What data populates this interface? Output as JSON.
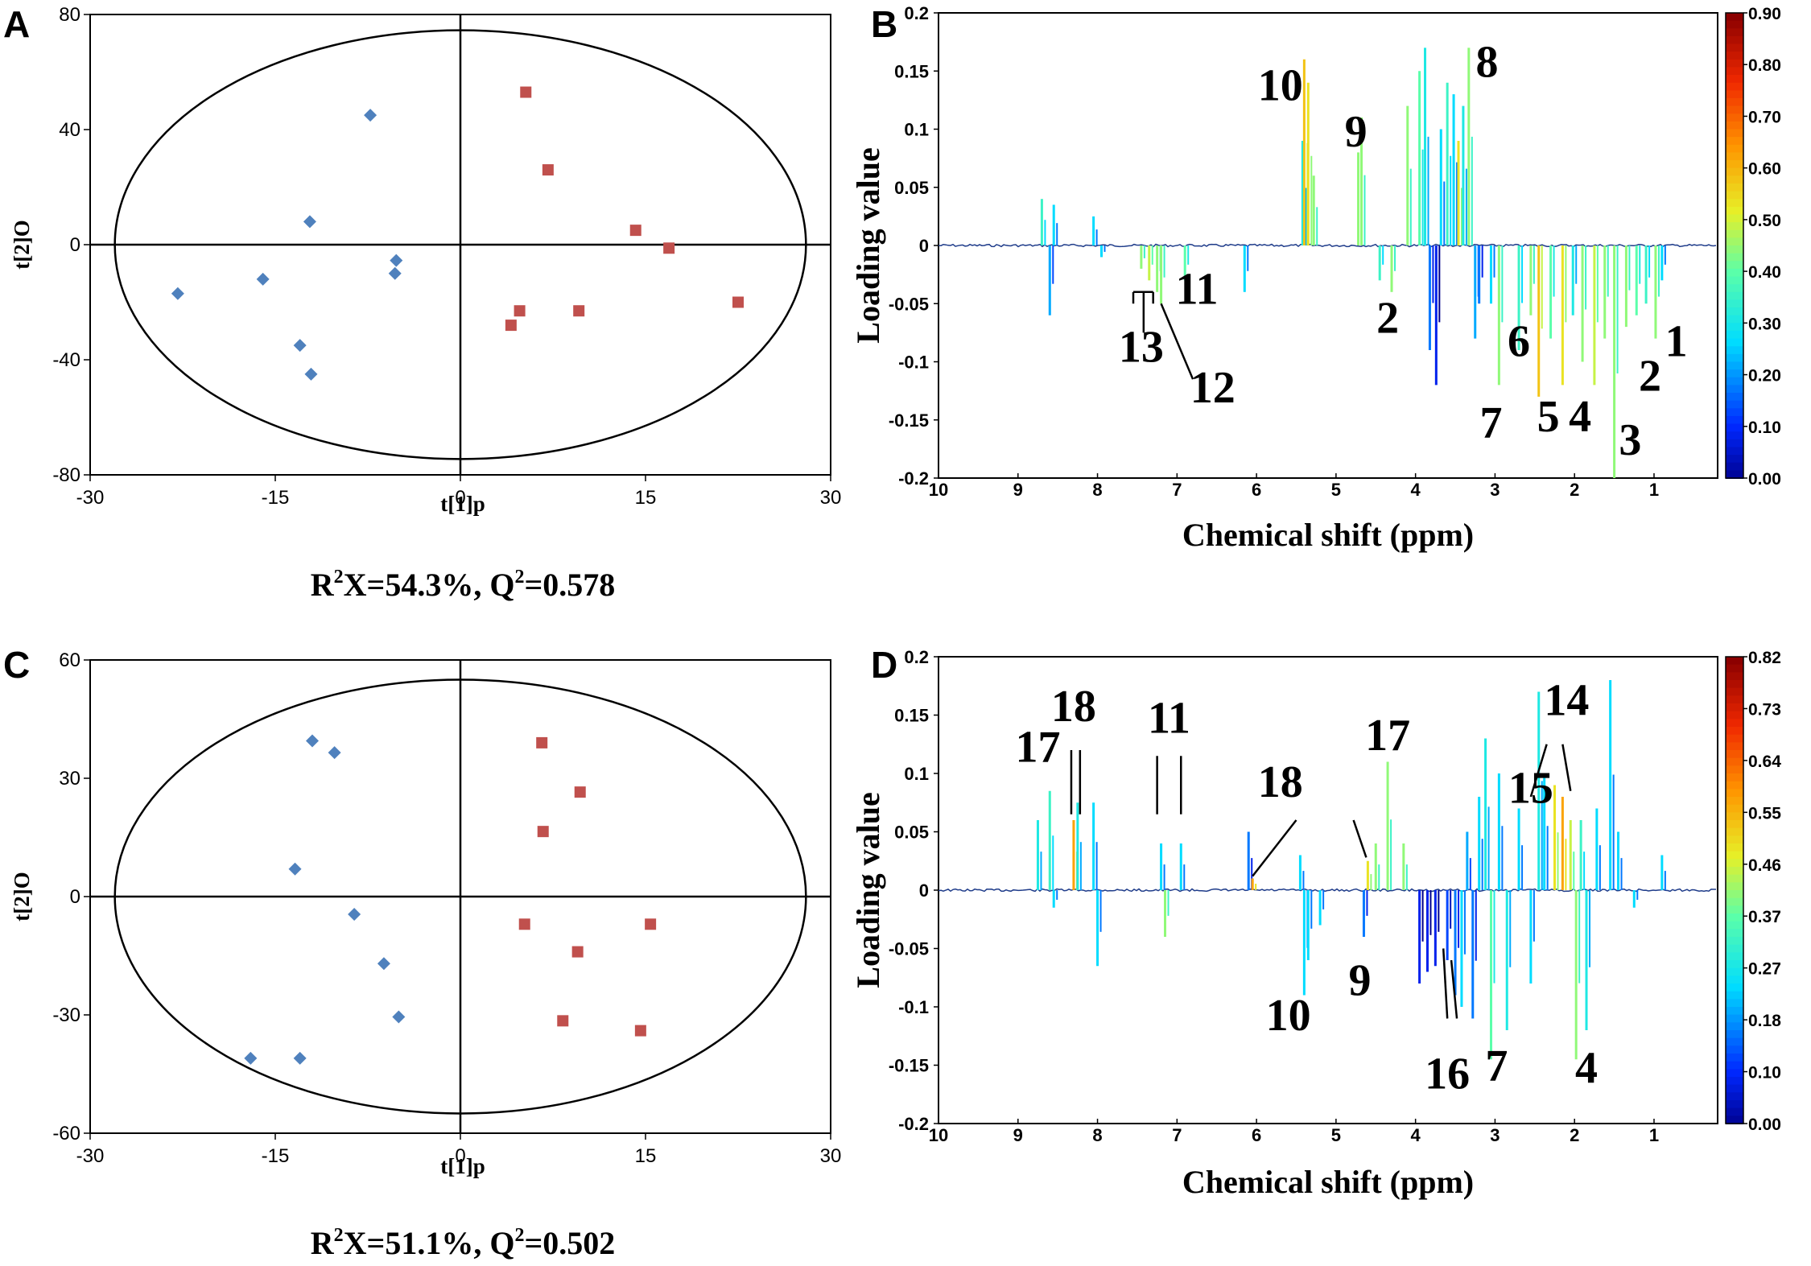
{
  "colors": {
    "diamond": "#4f81bd",
    "square": "#c0504d",
    "axis": "#000000",
    "spectrum_base": "#1f3c8a"
  },
  "chart_data": [
    {
      "panel": "A",
      "type": "scatter",
      "xlabel": "t[1]p",
      "ylabel": "t[2]O",
      "xlim": [
        -30,
        30
      ],
      "ylim": [
        -80,
        80
      ],
      "xticks": [
        "-30",
        "-15",
        "0",
        "15",
        "30"
      ],
      "yticks": [
        "80",
        "40",
        "0",
        "-40",
        "-80"
      ],
      "xtick_values": [
        -30,
        -15,
        0,
        15,
        30
      ],
      "ytick_values": [
        80,
        40,
        0,
        -40,
        -80
      ],
      "ellipse": {
        "rx": 28.0,
        "ry": 74.5
      },
      "stats": {
        "r2x_sym": "R",
        "r2x_sup": "2",
        "r2x_rest": "X=54.3%, Q",
        "q2_sup": "2",
        "q2_rest": "=0.578"
      },
      "series": [
        {
          "name": "group-blue",
          "marker": "diamond",
          "points": [
            [
              -7.3,
              45
            ],
            [
              -12.2,
              8
            ],
            [
              -5.2,
              -5.5
            ],
            [
              -5.3,
              -10
            ],
            [
              -16.0,
              -12
            ],
            [
              -22.9,
              -17
            ],
            [
              -13.0,
              -35
            ],
            [
              -12.1,
              -45
            ]
          ]
        },
        {
          "name": "group-red",
          "marker": "square",
          "points": [
            [
              5.3,
              53
            ],
            [
              7.1,
              26
            ],
            [
              14.2,
              5
            ],
            [
              16.9,
              -1.2
            ],
            [
              22.5,
              -20
            ],
            [
              9.6,
              -23
            ],
            [
              4.8,
              -23
            ],
            [
              4.1,
              -28
            ]
          ]
        }
      ]
    },
    {
      "panel": "C",
      "type": "scatter",
      "xlabel": "t[1]p",
      "ylabel": "t[2]O",
      "xlim": [
        -30,
        30
      ],
      "ylim": [
        -60,
        60
      ],
      "xticks": [
        "-30",
        "-15",
        "0",
        "15",
        "30"
      ],
      "yticks": [
        "60",
        "30",
        "0",
        "-30",
        "-60"
      ],
      "xtick_values": [
        -30,
        -15,
        0,
        15,
        30
      ],
      "ytick_values": [
        60,
        30,
        0,
        -30,
        -60
      ],
      "ellipse": {
        "rx": 28.0,
        "ry": 55.0
      },
      "stats": {
        "r2x_sym": "R",
        "r2x_sup": "2",
        "r2x_rest": "X=51.1%, Q",
        "q2_sup": "2",
        "q2_rest": "=0.502"
      },
      "series": [
        {
          "name": "group-blue",
          "marker": "diamond",
          "points": [
            [
              -12.0,
              39.5
            ],
            [
              -10.2,
              36.5
            ],
            [
              -13.4,
              7
            ],
            [
              -8.6,
              -4.5
            ],
            [
              -6.2,
              -17
            ],
            [
              -5.0,
              -30.5
            ],
            [
              -17.0,
              -41
            ],
            [
              -13.0,
              -41
            ]
          ]
        },
        {
          "name": "group-red",
          "marker": "square",
          "points": [
            [
              6.6,
              39
            ],
            [
              9.7,
              26.5
            ],
            [
              6.7,
              16.5
            ],
            [
              5.2,
              -7
            ],
            [
              15.4,
              -7
            ],
            [
              9.5,
              -14
            ],
            [
              8.3,
              -31.5
            ],
            [
              14.6,
              -34
            ]
          ]
        }
      ]
    },
    {
      "panel": "B",
      "type": "line",
      "xlabel": "Chemical shift (ppm)",
      "ylabel": "Loading value",
      "xlim": [
        10,
        0.2
      ],
      "ylim": [
        -0.2,
        0.2
      ],
      "xticks": [
        "10",
        "9",
        "8",
        "7",
        "6",
        "5",
        "4",
        "3",
        "2",
        "1"
      ],
      "xtick_values": [
        10,
        9,
        8,
        7,
        6,
        5,
        4,
        3,
        2,
        1
      ],
      "yticks": [
        "0.2",
        "0.15",
        "0.1",
        "0.05",
        "0",
        "-0.05",
        "-0.1",
        "-0.15",
        "-0.2"
      ],
      "ytick_values": [
        0.2,
        0.15,
        0.1,
        0.05,
        0,
        -0.05,
        -0.1,
        -0.15,
        -0.2
      ],
      "colorbar": [
        "0.90",
        "0.80",
        "0.70",
        "0.60",
        "0.50",
        "0.40",
        "0.30",
        "0.20",
        "0.10",
        "0.00"
      ],
      "peaks": [
        [
          8.7,
          0.04,
          0.4
        ],
        [
          8.6,
          -0.06,
          0.25
        ],
        [
          8.55,
          0.035,
          0.3
        ],
        [
          8.05,
          0.025,
          0.3
        ],
        [
          7.95,
          -0.01,
          0.3
        ],
        [
          7.45,
          -0.02,
          0.5
        ],
        [
          7.35,
          -0.03,
          0.55
        ],
        [
          7.25,
          -0.04,
          0.5
        ],
        [
          7.2,
          -0.05,
          0.5
        ],
        [
          6.9,
          -0.03,
          0.45
        ],
        [
          6.15,
          -0.04,
          0.3
        ],
        [
          5.42,
          0.09,
          0.35
        ],
        [
          5.4,
          0.16,
          0.65
        ],
        [
          5.35,
          0.14,
          0.6
        ],
        [
          5.28,
          0.06,
          0.5
        ],
        [
          4.72,
          0.08,
          0.5
        ],
        [
          4.68,
          0.11,
          0.5
        ],
        [
          4.45,
          -0.03,
          0.4
        ],
        [
          4.3,
          -0.04,
          0.5
        ],
        [
          4.1,
          0.12,
          0.5
        ],
        [
          3.95,
          0.15,
          0.45
        ],
        [
          3.88,
          0.17,
          0.35
        ],
        [
          3.82,
          -0.09,
          0.2
        ],
        [
          3.74,
          -0.12,
          0.1
        ],
        [
          3.68,
          0.1,
          0.3
        ],
        [
          3.6,
          0.14,
          0.4
        ],
        [
          3.52,
          0.13,
          0.3
        ],
        [
          3.46,
          0.09,
          0.6
        ],
        [
          3.4,
          0.12,
          0.35
        ],
        [
          3.33,
          0.17,
          0.5
        ],
        [
          3.25,
          -0.08,
          0.25
        ],
        [
          3.2,
          -0.05,
          0.2
        ],
        [
          3.05,
          -0.05,
          0.3
        ],
        [
          2.95,
          -0.12,
          0.5
        ],
        [
          2.7,
          -0.09,
          0.4
        ],
        [
          2.55,
          -0.06,
          0.5
        ],
        [
          2.45,
          -0.13,
          0.65
        ],
        [
          2.3,
          -0.08,
          0.45
        ],
        [
          2.15,
          -0.12,
          0.6
        ],
        [
          2.02,
          -0.06,
          0.35
        ],
        [
          1.9,
          -0.1,
          0.5
        ],
        [
          1.75,
          -0.12,
          0.55
        ],
        [
          1.62,
          -0.08,
          0.5
        ],
        [
          1.5,
          -0.2,
          0.5
        ],
        [
          1.35,
          -0.07,
          0.5
        ],
        [
          1.22,
          -0.06,
          0.45
        ],
        [
          1.1,
          -0.05,
          0.4
        ],
        [
          0.98,
          -0.08,
          0.5
        ],
        [
          0.9,
          -0.03,
          0.3
        ]
      ],
      "annotations": [
        {
          "text": "10",
          "x": 5.7,
          "y": 0.125
        },
        {
          "text": "9",
          "x": 4.75,
          "y": 0.085
        },
        {
          "text": "8",
          "x": 3.1,
          "y": 0.145
        },
        {
          "text": "11",
          "x": 6.75,
          "y": -0.05
        },
        {
          "text": "13",
          "x": 7.45,
          "y": -0.1
        },
        {
          "text": "12",
          "x": 6.55,
          "y": -0.135
        },
        {
          "text": "2",
          "x": 4.35,
          "y": -0.075
        },
        {
          "text": "6",
          "x": 2.7,
          "y": -0.095
        },
        {
          "text": "1",
          "x": 0.72,
          "y": -0.095
        },
        {
          "text": "2",
          "x": 1.05,
          "y": -0.125
        },
        {
          "text": "7",
          "x": 3.05,
          "y": -0.165
        },
        {
          "text": "5",
          "x": 2.33,
          "y": -0.16
        },
        {
          "text": "4",
          "x": 1.93,
          "y": -0.16
        },
        {
          "text": "3",
          "x": 1.3,
          "y": -0.18
        }
      ]
    },
    {
      "panel": "D",
      "type": "line",
      "xlabel": "Chemical shift (ppm)",
      "ylabel": "Loading value",
      "xlim": [
        10,
        0.2
      ],
      "ylim": [
        -0.2,
        0.2
      ],
      "xticks": [
        "10",
        "9",
        "8",
        "7",
        "6",
        "5",
        "4",
        "3",
        "2",
        "1"
      ],
      "xtick_values": [
        10,
        9,
        8,
        7,
        6,
        5,
        4,
        3,
        2,
        1
      ],
      "yticks": [
        "0.2",
        "0.15",
        "0.1",
        "0.05",
        "0",
        "-0.05",
        "-0.1",
        "-0.15",
        "-0.2"
      ],
      "ytick_values": [
        0.2,
        0.15,
        0.1,
        0.05,
        0,
        -0.05,
        -0.1,
        -0.15,
        -0.2
      ],
      "colorbar": [
        "0.82",
        "0.73",
        "0.64",
        "0.55",
        "0.46",
        "0.37",
        "0.27",
        "0.18",
        "0.10",
        "0.00"
      ],
      "peaks": [
        [
          8.75,
          0.06,
          0.35
        ],
        [
          8.6,
          0.085,
          0.4
        ],
        [
          8.55,
          -0.015,
          0.3
        ],
        [
          8.3,
          0.06,
          0.7
        ],
        [
          8.25,
          0.075,
          0.35
        ],
        [
          8.05,
          0.075,
          0.3
        ],
        [
          8.0,
          -0.065,
          0.3
        ],
        [
          7.2,
          0.04,
          0.3
        ],
        [
          7.15,
          -0.04,
          0.5
        ],
        [
          6.95,
          0.04,
          0.3
        ],
        [
          6.1,
          0.05,
          0.2
        ],
        [
          6.05,
          0.01,
          0.7
        ],
        [
          5.45,
          0.03,
          0.3
        ],
        [
          5.4,
          -0.09,
          0.3
        ],
        [
          5.35,
          -0.06,
          0.3
        ],
        [
          5.2,
          -0.03,
          0.3
        ],
        [
          4.65,
          -0.04,
          0.2
        ],
        [
          4.6,
          0.025,
          0.6
        ],
        [
          4.5,
          0.04,
          0.5
        ],
        [
          4.35,
          0.11,
          0.5
        ],
        [
          4.15,
          0.04,
          0.5
        ],
        [
          3.95,
          -0.08,
          0.1
        ],
        [
          3.85,
          -0.07,
          0.1
        ],
        [
          3.75,
          -0.065,
          0.1
        ],
        [
          3.6,
          -0.06,
          0.15
        ],
        [
          3.5,
          -0.09,
          0.2
        ],
        [
          3.42,
          -0.1,
          0.3
        ],
        [
          3.35,
          0.05,
          0.25
        ],
        [
          3.28,
          -0.11,
          0.2
        ],
        [
          3.2,
          0.08,
          0.3
        ],
        [
          3.12,
          0.13,
          0.35
        ],
        [
          3.05,
          -0.145,
          0.45
        ],
        [
          2.95,
          0.1,
          0.3
        ],
        [
          2.85,
          -0.12,
          0.35
        ],
        [
          2.7,
          0.07,
          0.3
        ],
        [
          2.55,
          -0.08,
          0.3
        ],
        [
          2.45,
          0.17,
          0.35
        ],
        [
          2.38,
          0.1,
          0.3
        ],
        [
          2.25,
          0.09,
          0.6
        ],
        [
          2.15,
          0.08,
          0.7
        ],
        [
          2.05,
          0.06,
          0.55
        ],
        [
          1.98,
          -0.145,
          0.5
        ],
        [
          1.92,
          0.06,
          0.4
        ],
        [
          1.85,
          -0.12,
          0.35
        ],
        [
          1.72,
          0.07,
          0.3
        ],
        [
          1.55,
          0.18,
          0.3
        ],
        [
          1.45,
          0.05,
          0.3
        ],
        [
          1.25,
          -0.015,
          0.3
        ],
        [
          0.9,
          0.03,
          0.3
        ]
      ],
      "annotations": [
        {
          "text": "17",
          "x": 8.75,
          "y": 0.11
        },
        {
          "text": "18",
          "x": 8.3,
          "y": 0.145
        },
        {
          "text": "11",
          "x": 7.1,
          "y": 0.135
        },
        {
          "text": "18",
          "x": 5.7,
          "y": 0.08
        },
        {
          "text": "17",
          "x": 4.35,
          "y": 0.12
        },
        {
          "text": "15",
          "x": 2.55,
          "y": 0.075
        },
        {
          "text": "14",
          "x": 2.1,
          "y": 0.15
        },
        {
          "text": "10",
          "x": 5.6,
          "y": -0.12
        },
        {
          "text": "9",
          "x": 4.7,
          "y": -0.09
        },
        {
          "text": "16",
          "x": 3.6,
          "y": -0.17
        },
        {
          "text": "7",
          "x": 2.98,
          "y": -0.163
        },
        {
          "text": "4",
          "x": 1.85,
          "y": -0.165
        }
      ]
    }
  ]
}
